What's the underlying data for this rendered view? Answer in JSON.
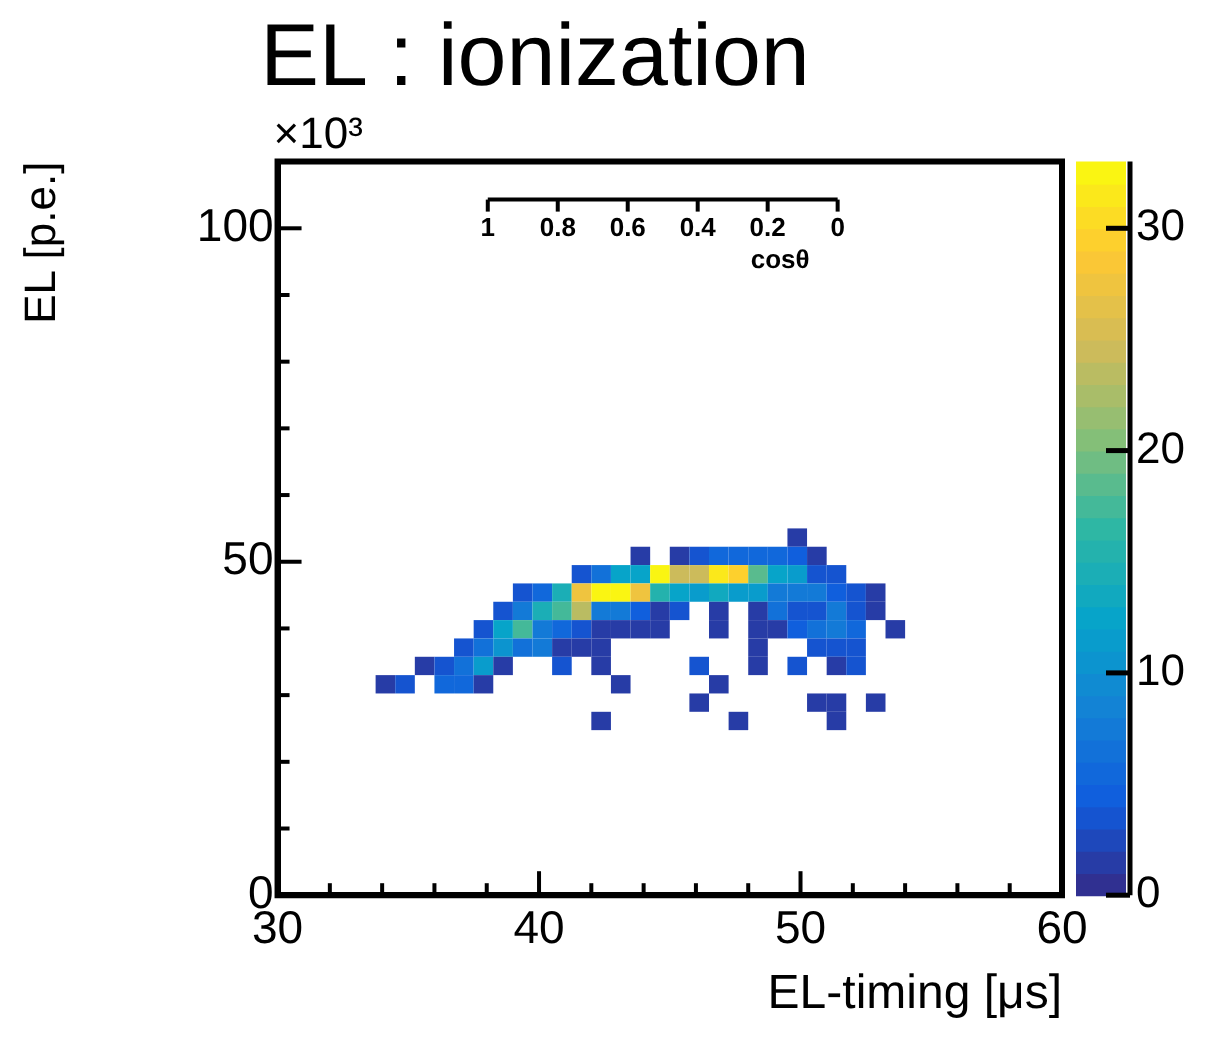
{
  "chart_data": {
    "type": "heatmap",
    "title": "EL : ionization",
    "xlabel": "EL-timing [μs]",
    "ylabel": "EL [p.e.]",
    "x2label": "cosθ",
    "annotations": [
      "×10³"
    ],
    "x": [
      34.125,
      34.875,
      35.625,
      36.375,
      37.125,
      37.875,
      38.625,
      39.375,
      40.125,
      40.875,
      41.625,
      42.375,
      43.125,
      43.875,
      44.625,
      45.375,
      46.125,
      46.875,
      47.625,
      48.375,
      49.125,
      49.875,
      50.625,
      51.375,
      52.125,
      52.875,
      53.625
    ],
    "y": [
      53.625,
      50.875,
      48.125,
      45.375,
      42.625,
      39.875,
      37.125,
      34.375,
      31.625,
      28.875,
      26.125
    ],
    "cells": [
      [
        null,
        null,
        null,
        null,
        null,
        null,
        null,
        null,
        null,
        null,
        null,
        null,
        null,
        null,
        null,
        null,
        null,
        null,
        null,
        null,
        null,
        1,
        null,
        null,
        null,
        null,
        null
      ],
      [
        null,
        null,
        null,
        null,
        null,
        null,
        null,
        null,
        null,
        null,
        null,
        null,
        null,
        1,
        null,
        1,
        3,
        5,
        5,
        5,
        5,
        4,
        1,
        null,
        null,
        null,
        null
      ],
      [
        null,
        null,
        null,
        null,
        null,
        null,
        null,
        null,
        null,
        null,
        3,
        6,
        12,
        12,
        32,
        24,
        24,
        31,
        29,
        18,
        12,
        11,
        3,
        3,
        null,
        null,
        null
      ],
      [
        null,
        null,
        null,
        null,
        null,
        null,
        null,
        3,
        5,
        14,
        27,
        33,
        33,
        27,
        15,
        12,
        11,
        13,
        11,
        11,
        7,
        7,
        7,
        4,
        3,
        1,
        null
      ],
      [
        null,
        null,
        null,
        null,
        null,
        null,
        3,
        7,
        14,
        17,
        23,
        7,
        7,
        4,
        1,
        3,
        null,
        1,
        null,
        1,
        6,
        3,
        3,
        7,
        3,
        1,
        null
      ],
      [
        null,
        null,
        null,
        null,
        null,
        3,
        12,
        17,
        7,
        5,
        3,
        1,
        1,
        1,
        1,
        null,
        null,
        1,
        null,
        1,
        1,
        4,
        6,
        7,
        5,
        null,
        1
      ],
      [
        null,
        null,
        null,
        null,
        3,
        6,
        10,
        6,
        7,
        1,
        1,
        1,
        null,
        null,
        null,
        null,
        null,
        null,
        null,
        1,
        null,
        null,
        3,
        3,
        3,
        null,
        null
      ],
      [
        null,
        null,
        1,
        3,
        6,
        11,
        1,
        null,
        null,
        3,
        null,
        1,
        null,
        null,
        null,
        null,
        3,
        null,
        null,
        1,
        null,
        3,
        null,
        1,
        3,
        null,
        null
      ],
      [
        1,
        3,
        null,
        5,
        5,
        1,
        null,
        null,
        null,
        null,
        null,
        null,
        1,
        null,
        null,
        null,
        null,
        1,
        null,
        null,
        null,
        null,
        null,
        null,
        null,
        null,
        null
      ],
      [
        null,
        null,
        null,
        null,
        null,
        null,
        null,
        null,
        null,
        null,
        null,
        null,
        null,
        null,
        null,
        null,
        1,
        null,
        null,
        null,
        null,
        null,
        1,
        1,
        null,
        1,
        null
      ],
      [
        null,
        null,
        null,
        null,
        null,
        null,
        null,
        null,
        null,
        null,
        null,
        1,
        null,
        null,
        null,
        null,
        null,
        null,
        1,
        null,
        null,
        null,
        null,
        1,
        null,
        null,
        null
      ]
    ],
    "xlim": [
      30,
      60
    ],
    "ylim": [
      0,
      110
    ],
    "clim": [
      0,
      33
    ],
    "cticks": [
      0,
      10,
      20,
      30
    ],
    "xticks": [
      30,
      {
        "value": 32,
        "label": null
      },
      {
        "value": 34,
        "label": null
      },
      {
        "value": 36,
        "label": null
      },
      {
        "value": 38,
        "label": null
      },
      40,
      {
        "value": 42,
        "label": null
      },
      {
        "value": 44,
        "label": null
      },
      {
        "value": 46,
        "label": null
      },
      {
        "value": 48,
        "label": null
      },
      50,
      {
        "value": 52,
        "label": null
      },
      {
        "value": 54,
        "label": null
      },
      {
        "value": 56,
        "label": null
      },
      {
        "value": 58,
        "label": null
      },
      60
    ],
    "yticks": [
      0,
      {
        "value": 10,
        "label": null
      },
      {
        "value": 20,
        "label": null
      },
      {
        "value": 30,
        "label": null
      },
      {
        "value": 40,
        "label": null
      },
      50,
      {
        "value": 60,
        "label": null
      },
      {
        "value": 70,
        "label": null
      },
      {
        "value": 80,
        "label": null
      },
      {
        "value": 90,
        "label": null
      },
      100,
      {
        "value": 110,
        "label": null
      }
    ],
    "x2lim": [
      1,
      0
    ],
    "x2ticks": [
      1,
      0.8,
      0.6,
      0.4,
      0.2,
      0
    ],
    "grid": false,
    "legend": false
  }
}
